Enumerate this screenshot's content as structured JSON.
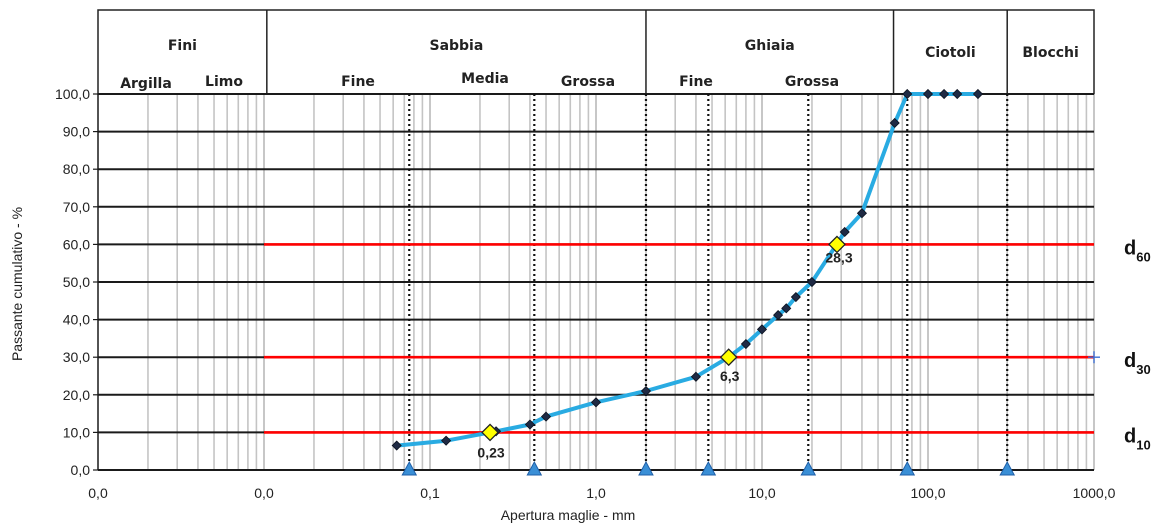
{
  "chart_data": {
    "type": "line",
    "xscale": "log",
    "xlim": [
      0.01,
      1000
    ],
    "ylim": [
      0,
      100
    ],
    "xlabel": "Apertura maglie - mm",
    "ylabel": "Passante cumulativo - %",
    "x_ticks": [
      {
        "value": 0.001,
        "label": "0,0"
      },
      {
        "value": 0.01,
        "label": "0,0"
      },
      {
        "value": 0.1,
        "label": "0,1"
      },
      {
        "value": 1,
        "label": "1,0"
      },
      {
        "value": 10,
        "label": "10,0"
      },
      {
        "value": 100,
        "label": "100,0"
      },
      {
        "value": 1000,
        "label": "1000,0"
      }
    ],
    "y_ticks": [
      "0,0",
      "10,0",
      "20,0",
      "30,0",
      "40,0",
      "50,0",
      "60,0",
      "70,0",
      "80,0",
      "90,0",
      "100,0"
    ],
    "header": {
      "groups": [
        "Fini",
        "Sabbia",
        "Ghiaia",
        "Ciotoli",
        "Blocchi"
      ],
      "subgroups": [
        "Argilla",
        "Limo",
        "Fine",
        "Media",
        "Grossa",
        "Fine",
        "Grossa"
      ]
    },
    "series": [
      {
        "color": "#29abe2",
        "marker_color": "#1f2a44",
        "x": [
          0.063,
          0.125,
          0.25,
          0.4,
          0.5,
          1.0,
          2.0,
          4.0,
          6.3,
          8.0,
          10.0,
          12.5,
          14.0,
          16.0,
          20.0,
          31.5,
          40.0,
          63.0,
          75.0,
          100.0,
          125.0,
          150.0,
          200.0
        ],
        "y": [
          6.5,
          7.8,
          10.3,
          12.1,
          14.2,
          18.0,
          21.0,
          24.8,
          30.0,
          33.5,
          37.4,
          41.2,
          43.0,
          46.0,
          50.0,
          63.3,
          68.3,
          92.3,
          100.0,
          100.0,
          100.0,
          100.0,
          100.0
        ]
      }
    ],
    "characteristic_points": [
      {
        "name": "d10",
        "x": 0.23,
        "y": 10,
        "label": "0,23"
      },
      {
        "name": "d30",
        "x": 6.3,
        "y": 30,
        "label": "6,3"
      },
      {
        "name": "d60",
        "x": 28.3,
        "y": 60,
        "label": "28,3"
      }
    ],
    "reference_lines": [
      {
        "y": 10,
        "label": "d",
        "sub": "10"
      },
      {
        "y": 30,
        "label": "d",
        "sub": "30"
      },
      {
        "y": 60,
        "label": "d",
        "sub": "60"
      }
    ],
    "line_color": "#ff0000",
    "highlight_color": "#ffff00",
    "triangle_color": "#3a8fd6",
    "boundaries": [
      0.075,
      0.425,
      2.0,
      4.75,
      19.0,
      75.0,
      300.0
    ]
  }
}
